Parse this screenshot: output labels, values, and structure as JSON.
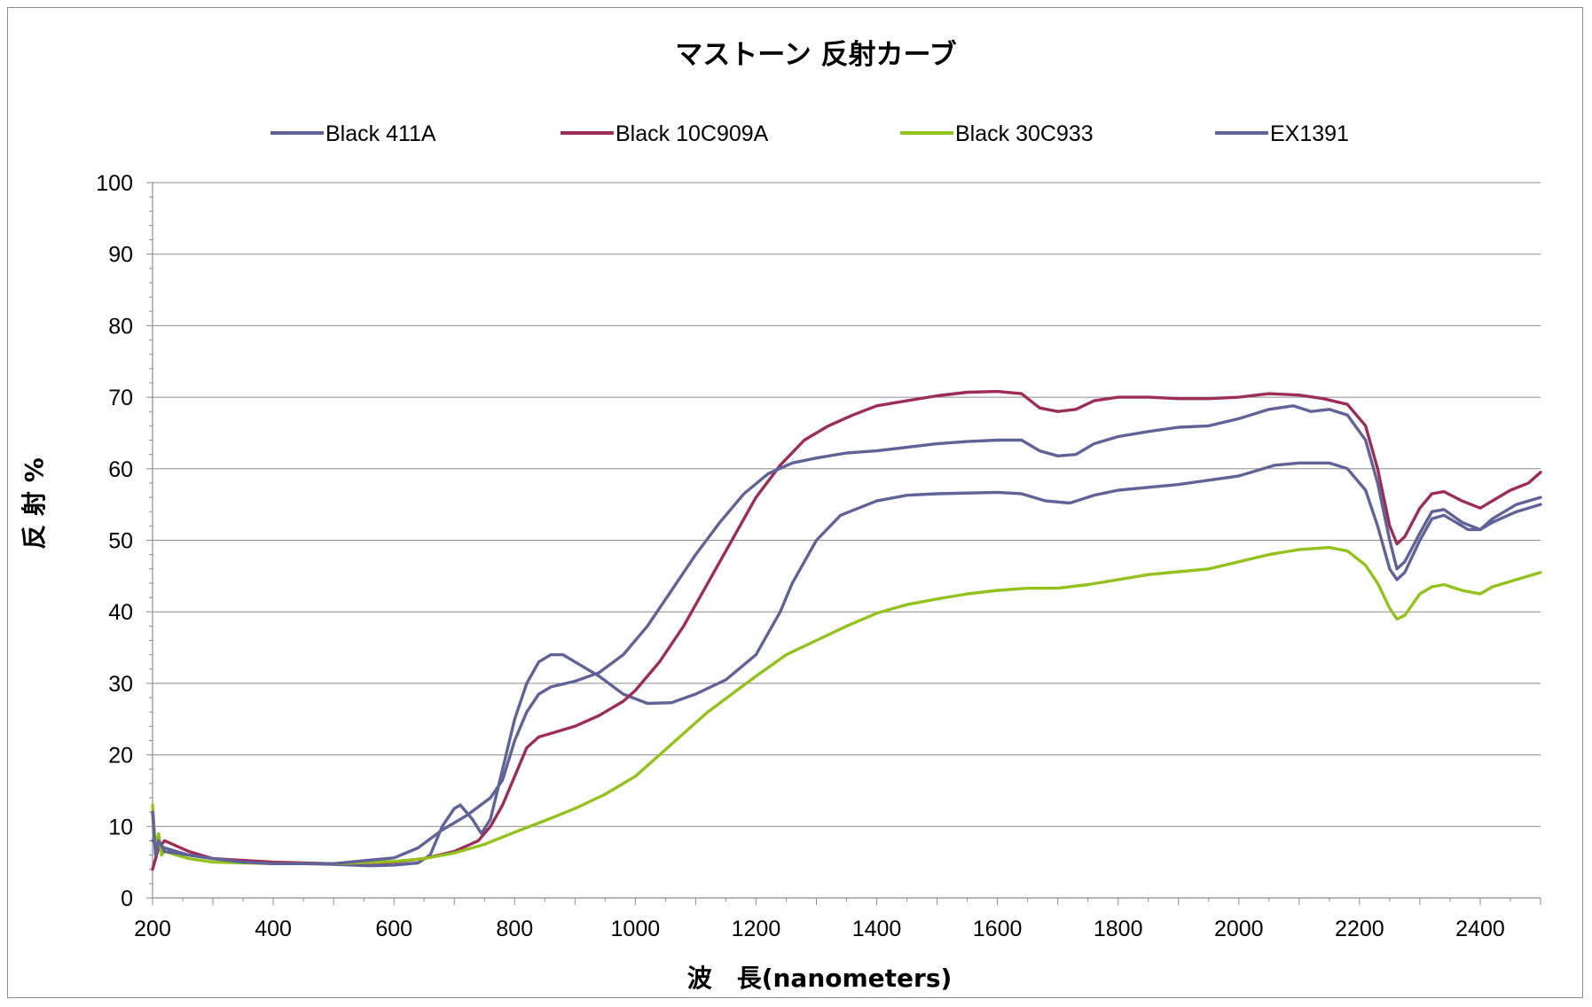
{
  "chart_data": {
    "type": "line",
    "title": "マストーン 反射カーブ",
    "xlabel": "波　長(nanometers)",
    "ylabel": "反 射 %",
    "xlim": [
      200,
      2500
    ],
    "ylim": [
      0,
      100
    ],
    "x_ticks": [
      "200",
      "400",
      "600",
      "800",
      "1000",
      "1200",
      "1400",
      "1600",
      "1800",
      "2000",
      "2200",
      "2400"
    ],
    "y_ticks": [
      "0",
      "10",
      "20",
      "30",
      "40",
      "50",
      "60",
      "70",
      "80",
      "90",
      "100"
    ],
    "grid": "horizontal",
    "legend_position": "top",
    "series": [
      {
        "name": "Black 411A",
        "color": "#5f6397",
        "points": [
          [
            200,
            8
          ],
          [
            220,
            7
          ],
          [
            260,
            6
          ],
          [
            300,
            5.5
          ],
          [
            350,
            5
          ],
          [
            400,
            4.8
          ],
          [
            450,
            4.8
          ],
          [
            500,
            4.7
          ],
          [
            560,
            4.5
          ],
          [
            600,
            4.6
          ],
          [
            640,
            4.9
          ],
          [
            660,
            6
          ],
          [
            680,
            10
          ],
          [
            700,
            12.5
          ],
          [
            710,
            13
          ],
          [
            730,
            11
          ],
          [
            745,
            9
          ],
          [
            760,
            11
          ],
          [
            780,
            18
          ],
          [
            800,
            25
          ],
          [
            820,
            30
          ],
          [
            840,
            33
          ],
          [
            860,
            34
          ],
          [
            880,
            34
          ],
          [
            900,
            33
          ],
          [
            940,
            31
          ],
          [
            980,
            28.5
          ],
          [
            1020,
            27.2
          ],
          [
            1060,
            27.3
          ],
          [
            1100,
            28.5
          ],
          [
            1150,
            30.5
          ],
          [
            1200,
            34
          ],
          [
            1240,
            40
          ],
          [
            1260,
            44
          ],
          [
            1300,
            50
          ],
          [
            1340,
            53.5
          ],
          [
            1400,
            55.5
          ],
          [
            1450,
            56.3
          ],
          [
            1500,
            56.5
          ],
          [
            1600,
            56.7
          ],
          [
            1640,
            56.5
          ],
          [
            1680,
            55.5
          ],
          [
            1720,
            55.2
          ],
          [
            1760,
            56.3
          ],
          [
            1800,
            57
          ],
          [
            1900,
            57.8
          ],
          [
            2000,
            59
          ],
          [
            2060,
            60.5
          ],
          [
            2100,
            60.8
          ],
          [
            2150,
            60.8
          ],
          [
            2180,
            60
          ],
          [
            2210,
            57
          ],
          [
            2230,
            52
          ],
          [
            2250,
            46
          ],
          [
            2262,
            44.5
          ],
          [
            2275,
            45.5
          ],
          [
            2300,
            50
          ],
          [
            2320,
            53
          ],
          [
            2340,
            53.5
          ],
          [
            2360,
            52.5
          ],
          [
            2380,
            51.5
          ],
          [
            2400,
            51.5
          ],
          [
            2420,
            52.5
          ],
          [
            2460,
            54
          ],
          [
            2500,
            55
          ]
        ]
      },
      {
        "name": "Black 10C909A",
        "color": "#9c2d57",
        "points": [
          [
            200,
            4
          ],
          [
            210,
            7
          ],
          [
            220,
            8
          ],
          [
            260,
            6.5
          ],
          [
            300,
            5.5
          ],
          [
            400,
            5
          ],
          [
            500,
            4.8
          ],
          [
            600,
            5
          ],
          [
            650,
            5.5
          ],
          [
            700,
            6.5
          ],
          [
            740,
            8
          ],
          [
            760,
            10
          ],
          [
            780,
            13
          ],
          [
            800,
            17
          ],
          [
            820,
            21
          ],
          [
            840,
            22.5
          ],
          [
            860,
            23
          ],
          [
            900,
            24
          ],
          [
            940,
            25.5
          ],
          [
            980,
            27.5
          ],
          [
            1000,
            29
          ],
          [
            1040,
            33
          ],
          [
            1080,
            38
          ],
          [
            1120,
            44
          ],
          [
            1160,
            50
          ],
          [
            1200,
            56
          ],
          [
            1240,
            60.5
          ],
          [
            1280,
            64
          ],
          [
            1320,
            66
          ],
          [
            1360,
            67.5
          ],
          [
            1400,
            68.8
          ],
          [
            1450,
            69.5
          ],
          [
            1500,
            70.2
          ],
          [
            1550,
            70.7
          ],
          [
            1600,
            70.8
          ],
          [
            1640,
            70.5
          ],
          [
            1670,
            68.5
          ],
          [
            1700,
            68
          ],
          [
            1730,
            68.3
          ],
          [
            1760,
            69.5
          ],
          [
            1800,
            70
          ],
          [
            1850,
            70
          ],
          [
            1900,
            69.8
          ],
          [
            1950,
            69.8
          ],
          [
            2000,
            70
          ],
          [
            2050,
            70.5
          ],
          [
            2100,
            70.3
          ],
          [
            2140,
            69.8
          ],
          [
            2180,
            69
          ],
          [
            2210,
            66
          ],
          [
            2230,
            60
          ],
          [
            2250,
            52
          ],
          [
            2262,
            49.5
          ],
          [
            2275,
            50.5
          ],
          [
            2300,
            54.5
          ],
          [
            2320,
            56.5
          ],
          [
            2340,
            56.8
          ],
          [
            2370,
            55.5
          ],
          [
            2400,
            54.5
          ],
          [
            2420,
            55.5
          ],
          [
            2450,
            57
          ],
          [
            2480,
            58
          ],
          [
            2500,
            59.5
          ]
        ]
      },
      {
        "name": "Black 30C933",
        "color": "#92c31c",
        "points": [
          [
            200,
            13
          ],
          [
            205,
            7
          ],
          [
            210,
            9
          ],
          [
            215,
            6
          ],
          [
            220,
            6.5
          ],
          [
            260,
            5.5
          ],
          [
            300,
            5
          ],
          [
            400,
            4.8
          ],
          [
            500,
            4.8
          ],
          [
            600,
            5.1
          ],
          [
            650,
            5.5
          ],
          [
            700,
            6.3
          ],
          [
            750,
            7.5
          ],
          [
            800,
            9.2
          ],
          [
            850,
            10.8
          ],
          [
            900,
            12.5
          ],
          [
            950,
            14.5
          ],
          [
            1000,
            17
          ],
          [
            1040,
            20
          ],
          [
            1080,
            23
          ],
          [
            1120,
            26
          ],
          [
            1160,
            28.5
          ],
          [
            1200,
            31
          ],
          [
            1250,
            34
          ],
          [
            1300,
            36
          ],
          [
            1350,
            38
          ],
          [
            1400,
            39.8
          ],
          [
            1450,
            41
          ],
          [
            1500,
            41.8
          ],
          [
            1550,
            42.5
          ],
          [
            1600,
            43
          ],
          [
            1650,
            43.3
          ],
          [
            1700,
            43.3
          ],
          [
            1750,
            43.8
          ],
          [
            1800,
            44.5
          ],
          [
            1850,
            45.2
          ],
          [
            1900,
            45.6
          ],
          [
            1950,
            46
          ],
          [
            2000,
            47
          ],
          [
            2050,
            48
          ],
          [
            2100,
            48.7
          ],
          [
            2150,
            49
          ],
          [
            2180,
            48.5
          ],
          [
            2210,
            46.5
          ],
          [
            2230,
            44
          ],
          [
            2250,
            40.5
          ],
          [
            2262,
            39
          ],
          [
            2275,
            39.5
          ],
          [
            2300,
            42.5
          ],
          [
            2320,
            43.5
          ],
          [
            2340,
            43.8
          ],
          [
            2370,
            43
          ],
          [
            2400,
            42.5
          ],
          [
            2420,
            43.5
          ],
          [
            2460,
            44.5
          ],
          [
            2500,
            45.5
          ]
        ]
      },
      {
        "name": "EX1391",
        "color": "#5f6397",
        "points": [
          [
            200,
            12
          ],
          [
            205,
            6
          ],
          [
            210,
            8
          ],
          [
            220,
            6.5
          ],
          [
            260,
            6
          ],
          [
            300,
            5.5
          ],
          [
            350,
            5
          ],
          [
            400,
            4.8
          ],
          [
            450,
            4.8
          ],
          [
            500,
            4.8
          ],
          [
            550,
            5.2
          ],
          [
            600,
            5.6
          ],
          [
            640,
            7
          ],
          [
            680,
            9.5
          ],
          [
            720,
            11.5
          ],
          [
            760,
            14
          ],
          [
            780,
            16.5
          ],
          [
            800,
            22
          ],
          [
            820,
            26
          ],
          [
            840,
            28.5
          ],
          [
            860,
            29.5
          ],
          [
            900,
            30.3
          ],
          [
            940,
            31.5
          ],
          [
            980,
            34
          ],
          [
            1020,
            38
          ],
          [
            1060,
            43
          ],
          [
            1100,
            48
          ],
          [
            1140,
            52.5
          ],
          [
            1180,
            56.5
          ],
          [
            1220,
            59.3
          ],
          [
            1260,
            60.8
          ],
          [
            1300,
            61.5
          ],
          [
            1350,
            62.2
          ],
          [
            1400,
            62.5
          ],
          [
            1450,
            63
          ],
          [
            1500,
            63.5
          ],
          [
            1550,
            63.8
          ],
          [
            1600,
            64
          ],
          [
            1640,
            64
          ],
          [
            1670,
            62.5
          ],
          [
            1700,
            61.8
          ],
          [
            1730,
            62
          ],
          [
            1760,
            63.5
          ],
          [
            1800,
            64.5
          ],
          [
            1850,
            65.2
          ],
          [
            1900,
            65.8
          ],
          [
            1950,
            66
          ],
          [
            2000,
            67
          ],
          [
            2050,
            68.3
          ],
          [
            2090,
            68.8
          ],
          [
            2120,
            68
          ],
          [
            2150,
            68.3
          ],
          [
            2180,
            67.5
          ],
          [
            2210,
            64
          ],
          [
            2230,
            58
          ],
          [
            2250,
            50
          ],
          [
            2262,
            46
          ],
          [
            2275,
            47
          ],
          [
            2300,
            51
          ],
          [
            2320,
            54
          ],
          [
            2340,
            54.3
          ],
          [
            2370,
            52.5
          ],
          [
            2400,
            51.5
          ],
          [
            2420,
            53
          ],
          [
            2460,
            55
          ],
          [
            2500,
            56
          ]
        ]
      }
    ]
  }
}
